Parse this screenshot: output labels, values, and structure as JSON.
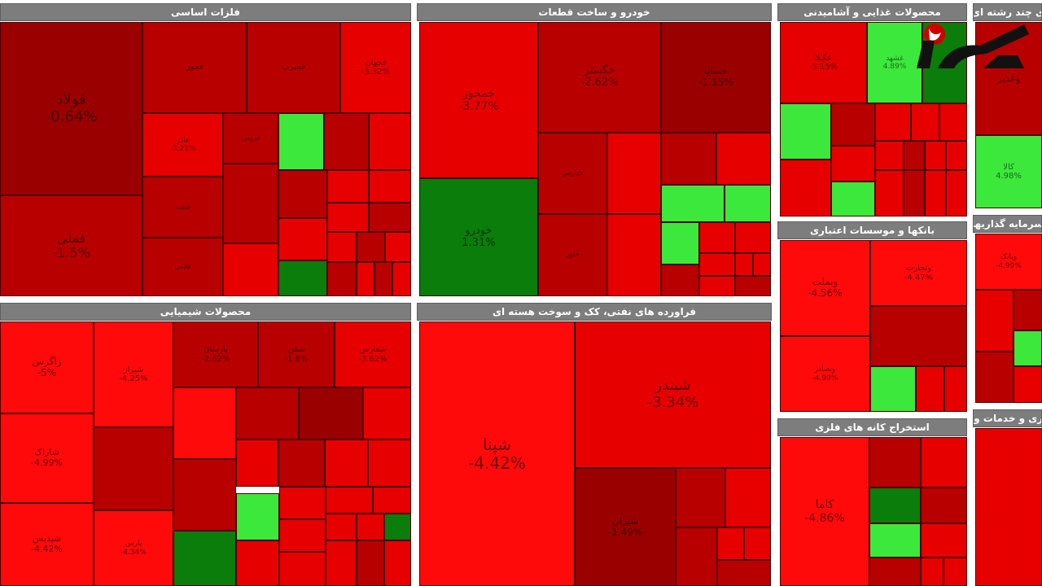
{
  "colors": {
    "deep_red": "#9b0000",
    "dark_red": "#b80000",
    "red": "#e60000",
    "bright_red": "#ff0a0a",
    "dark_green": "#0a7d0a",
    "green": "#3be83b",
    "header": "#7d7d7d"
  },
  "logo": {
    "icon": "rokna-logo-icon"
  },
  "chart_data": {
    "type": "treemap",
    "sectors": [
      {
        "name": "فلزات اساسی",
        "tickers": [
          {
            "symbol": "فولاد",
            "change": "-0.64%"
          },
          {
            "symbol": "فملی",
            "change": "-1.5%"
          },
          {
            "symbol": "فخوز",
            "change": ""
          },
          {
            "symbol": "فسرب",
            "change": ""
          },
          {
            "symbol": "فجهان",
            "change": "-3.32%"
          },
          {
            "symbol": "فاذر",
            "change": "-3.21%"
          },
          {
            "symbol": "فروس",
            "change": ""
          },
          {
            "symbol": "فنفت",
            "change": ""
          },
          {
            "symbol": "فلامی",
            "change": ""
          }
        ]
      },
      {
        "name": "خودرو و ساخت قطعات",
        "tickers": [
          {
            "symbol": "خمحور",
            "change": "-3.77%"
          },
          {
            "symbol": "خگستر",
            "change": "-2.62%"
          },
          {
            "symbol": "خساپا",
            "change": "-1.15%"
          },
          {
            "symbol": "خودرو",
            "change": "1.31%"
          },
          {
            "symbol": "خپارس",
            "change": ""
          },
          {
            "symbol": "خاور",
            "change": ""
          }
        ]
      },
      {
        "name": "محصولات غذایی و آشامیدنی",
        "tickers": [
          {
            "symbol": "غگیلا",
            "change": "-3.15%"
          },
          {
            "symbol": "غشهد",
            "change": "4.89%"
          }
        ]
      },
      {
        "name": "شرکتهای چند رشته ای صنعتی",
        "tickers": [
          {
            "symbol": "وغدیر",
            "change": ""
          },
          {
            "symbol": "کالا",
            "change": "4.98%"
          }
        ]
      },
      {
        "name": "محصولات شیمیایی",
        "tickers": [
          {
            "symbol": "زاگرس",
            "change": "-5%"
          },
          {
            "symbol": "شیراز",
            "change": "-4.25%"
          },
          {
            "symbol": "پارسان",
            "change": "-2.62%"
          },
          {
            "symbol": "شفن",
            "change": "-1.8%"
          },
          {
            "symbol": "شفارس",
            "change": "-3.62%"
          },
          {
            "symbol": "شاراک",
            "change": "-4.99%"
          },
          {
            "symbol": "شپدیس",
            "change": "-4.42%"
          },
          {
            "symbol": "پارس",
            "change": "-4.34%"
          }
        ]
      },
      {
        "name": "فراورده های نفتی، کک و سوخت هسته ای",
        "tickers": [
          {
            "symbol": "شبندر",
            "change": "-3.34%"
          },
          {
            "symbol": "شپنا",
            "change": "-4.42%"
          },
          {
            "symbol": "شتران",
            "change": "-1.49%"
          }
        ]
      },
      {
        "name": "بانکها و موسسات اعتباری",
        "tickers": [
          {
            "symbol": "وبملت",
            "change": "-4.56%"
          },
          {
            "symbol": "وتجارت",
            "change": "-4.47%"
          },
          {
            "symbol": "وبصادر",
            "change": "-4.99%"
          }
        ]
      },
      {
        "name": "استخراج کانه های فلزی",
        "tickers": [
          {
            "symbol": "کاما",
            "change": "-4.86%"
          }
        ]
      },
      {
        "name": "سرمایه گذاریها",
        "tickers": [
          {
            "symbol": "وبانک",
            "change": "-4.99%"
          }
        ]
      },
      {
        "name": "ابزارپیمانکاری و خدمات وابسته به آن",
        "tickers": []
      }
    ]
  }
}
